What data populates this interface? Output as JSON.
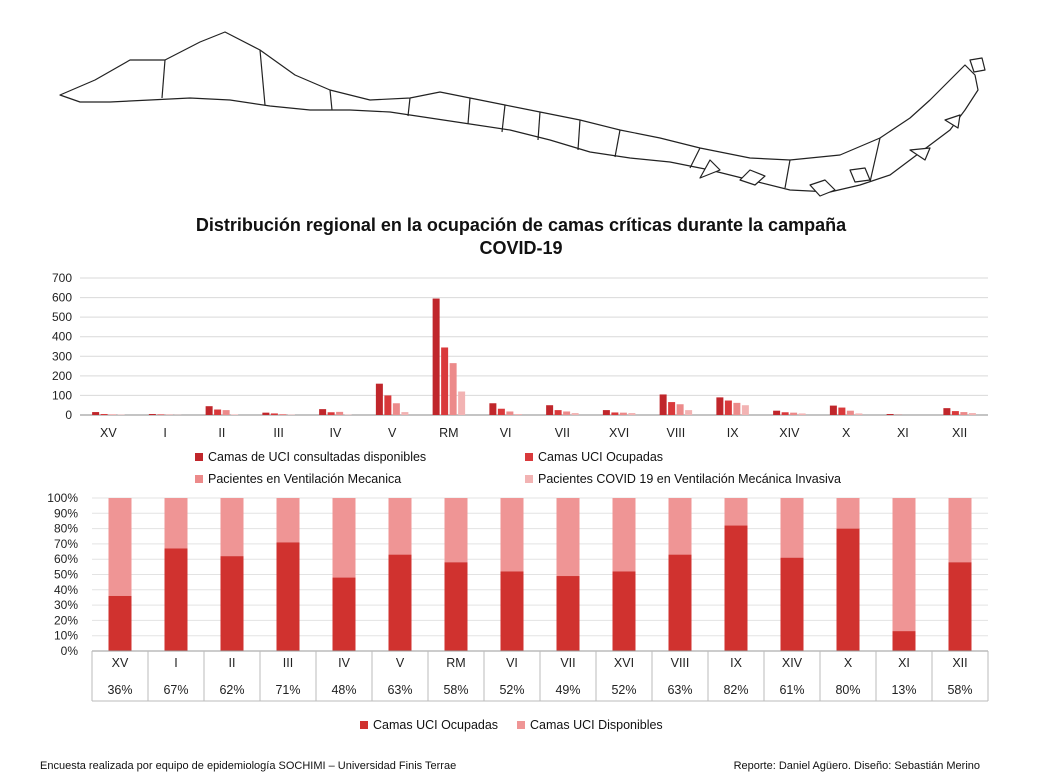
{
  "title_line1": "Distribución regional en la ocupación de camas críticas durante la campaña",
  "title_line2": "COVID-19",
  "footer_left": "Encuesta realizada por equipo de epidemiología SOCHIMI – Universidad Finis Terrae",
  "footer_right": "Reporte: Daniel Agüero. Diseño: Sebastián Merino",
  "colors": {
    "dark": "#c0262b",
    "mid": "#d9393b",
    "light": "#ec8a8a",
    "lighter": "#f2b3b3"
  },
  "chart_data": [
    {
      "type": "bar",
      "categories": [
        "XV",
        "I",
        "II",
        "III",
        "IV",
        "V",
        "RM",
        "VI",
        "VII",
        "XVI",
        "VIII",
        "IX",
        "XIV",
        "X",
        "XI",
        "XII"
      ],
      "yticks": [
        "0",
        "100",
        "200",
        "300",
        "400",
        "500",
        "600",
        "700"
      ],
      "ylim": [
        0,
        700
      ],
      "grid": true,
      "legend_position": "bottom",
      "series": [
        {
          "name": "Camas de UCI consultadas disponibles",
          "color": "#c0262b",
          "values": [
            15,
            5,
            45,
            12,
            30,
            160,
            595,
            60,
            50,
            25,
            105,
            90,
            22,
            48,
            5,
            35
          ]
        },
        {
          "name": "Camas UCI Ocupadas",
          "color": "#d9393b",
          "values": [
            5,
            3,
            28,
            8,
            14,
            100,
            345,
            32,
            25,
            13,
            66,
            74,
            14,
            38,
            1,
            20
          ]
        },
        {
          "name": "Pacientes en Ventilación Mecanica",
          "color": "#ec8a8a",
          "values": [
            3,
            2,
            25,
            5,
            16,
            60,
            265,
            18,
            18,
            12,
            55,
            62,
            12,
            22,
            0,
            15
          ]
        },
        {
          "name": "Pacientes COVID 19 en Ventilación Mecánica Invasiva",
          "color": "#f2b3b3",
          "values": [
            2,
            1,
            3,
            2,
            2,
            15,
            120,
            5,
            10,
            10,
            25,
            50,
            8,
            8,
            0,
            10
          ]
        }
      ]
    },
    {
      "type": "bar",
      "stacked": true,
      "categories": [
        "XV",
        "I",
        "II",
        "III",
        "IV",
        "V",
        "RM",
        "VI",
        "VII",
        "XVI",
        "VIII",
        "IX",
        "XIV",
        "X",
        "XI",
        "XII"
      ],
      "yticks": [
        "0%",
        "10%",
        "20%",
        "30%",
        "40%",
        "50%",
        "60%",
        "70%",
        "80%",
        "90%",
        "100%"
      ],
      "ylim": [
        0,
        100
      ],
      "legend_position": "bottom",
      "series": [
        {
          "name": "Camas UCI Ocupadas",
          "color": "#d0322f",
          "values": [
            36,
            67,
            62,
            71,
            48,
            63,
            58,
            52,
            49,
            52,
            63,
            82,
            61,
            80,
            13,
            58
          ]
        },
        {
          "name": "Camas UCI Disponibles",
          "color": "#ef9595",
          "values": [
            64,
            33,
            38,
            29,
            52,
            37,
            42,
            48,
            51,
            48,
            37,
            18,
            39,
            20,
            87,
            42
          ]
        }
      ],
      "table_labels": [
        "36%",
        "67%",
        "62%",
        "71%",
        "48%",
        "63%",
        "58%",
        "52%",
        "49%",
        "52%",
        "63%",
        "82%",
        "61%",
        "80%",
        "13%",
        "58%"
      ]
    }
  ]
}
